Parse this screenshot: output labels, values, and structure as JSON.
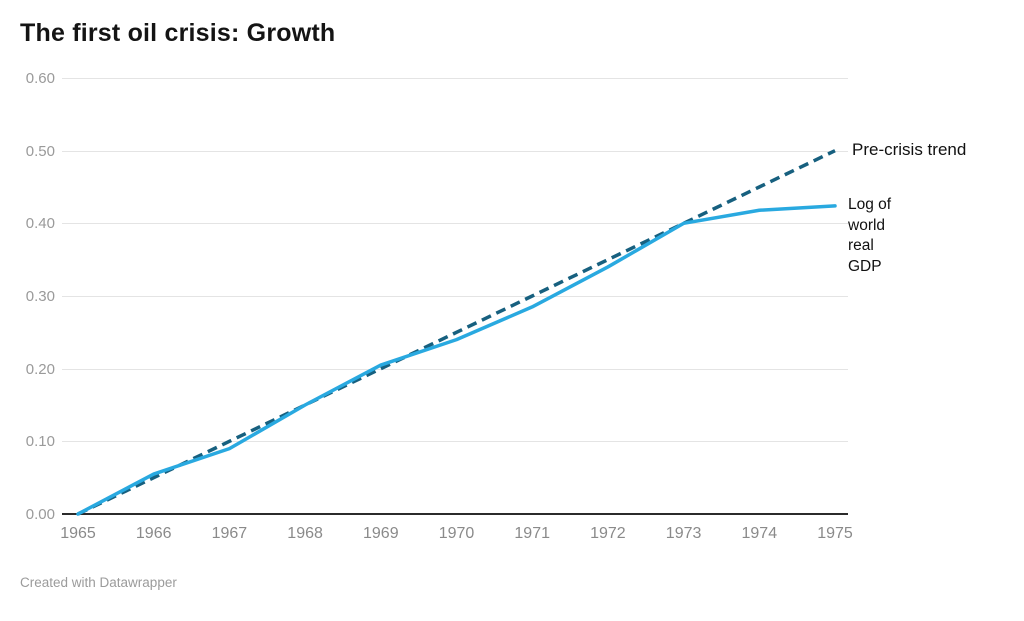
{
  "title": "The first oil crisis: Growth",
  "footer": {
    "credit": "Created with Datawrapper"
  },
  "colors": {
    "title_text": "#141414",
    "trend_line": "#17607f",
    "gdp_line": "#29a9e0",
    "grid": "#e4e4e4",
    "baseline": "#2b2b2b",
    "y_tick_text": "#9a9a9a",
    "x_tick_text": "#8a8a8a",
    "annotation_text": "#111111",
    "credit_text": "#9b9b9b",
    "background": "#ffffff"
  },
  "annotations": {
    "trend_label": "Pre-crisis trend",
    "gdp_label": "Log of world real GDP"
  },
  "chart_data": {
    "type": "line",
    "title": "The first oil crisis: Growth",
    "xlabel": "",
    "ylabel": "",
    "x": [
      1965,
      1966,
      1967,
      1968,
      1969,
      1970,
      1971,
      1972,
      1973,
      1974,
      1975
    ],
    "xtick_labels": [
      "1965",
      "1966",
      "1967",
      "1968",
      "1969",
      "1970",
      "1971",
      "1972",
      "1973",
      "1974",
      "1975"
    ],
    "yticks": [
      0.0,
      0.1,
      0.2,
      0.3,
      0.4,
      0.5,
      0.6
    ],
    "ytick_labels": [
      "0.00",
      "0.10",
      "0.20",
      "0.30",
      "0.40",
      "0.50",
      "0.60"
    ],
    "ylim": [
      0.0,
      0.6
    ],
    "grid": "horizontal",
    "legend_position": "right-annotations",
    "series": [
      {
        "name": "Pre-crisis trend",
        "style": "dashed",
        "color": "#17607f",
        "values": [
          0.0,
          0.05,
          0.1,
          0.15,
          0.2,
          0.25,
          0.3,
          0.35,
          0.4,
          0.45,
          0.5
        ]
      },
      {
        "name": "Log of world real GDP",
        "style": "solid",
        "color": "#29a9e0",
        "values": [
          0.0,
          0.055,
          0.09,
          0.15,
          0.205,
          0.24,
          0.285,
          0.34,
          0.4,
          0.418,
          0.424
        ]
      }
    ]
  }
}
